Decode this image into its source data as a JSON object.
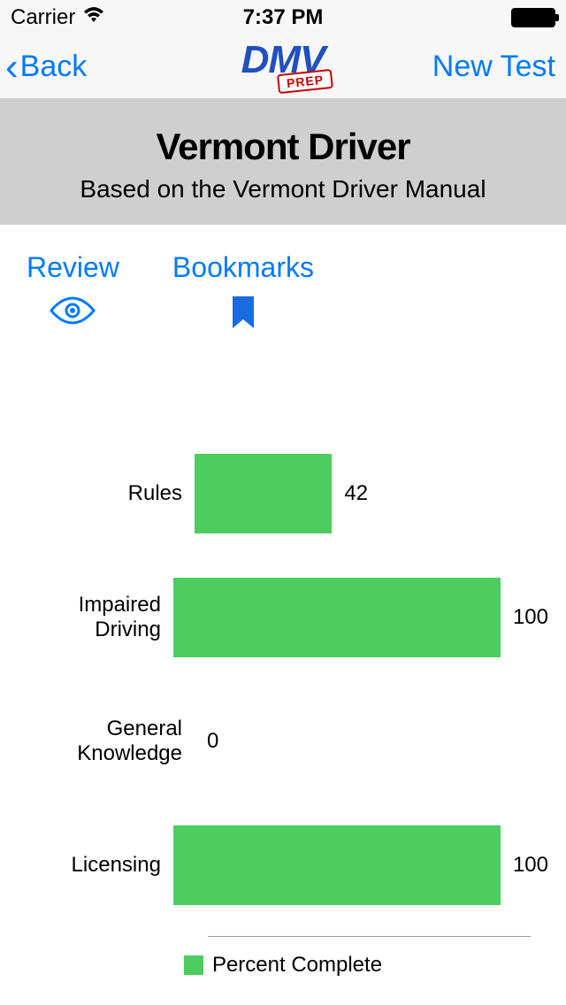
{
  "status_bar": {
    "carrier": "Carrier",
    "time": "7:37 PM"
  },
  "nav": {
    "back_label": "Back",
    "title_main": "DMV",
    "title_badge": "PREP",
    "new_test_label": "New Test"
  },
  "header": {
    "title": "Vermont Driver",
    "subtitle": "Based on the Vermont Driver Manual"
  },
  "actions": {
    "review_label": "Review",
    "bookmarks_label": "Bookmarks"
  },
  "chart": {
    "type": "bar",
    "bar_color": "#4dcc5f",
    "max_value": 100,
    "rows": [
      {
        "label": "Rules",
        "value": 42
      },
      {
        "label": "Impaired Driving",
        "value": 100
      },
      {
        "label": "General Knowledge",
        "value": 0
      },
      {
        "label": "Licensing",
        "value": 100
      }
    ],
    "legend_label": "Percent Complete"
  },
  "colors": {
    "ios_blue": "#007aff",
    "header_bg": "#cfcfcf",
    "navbar_bg": "#f7f7f7"
  }
}
